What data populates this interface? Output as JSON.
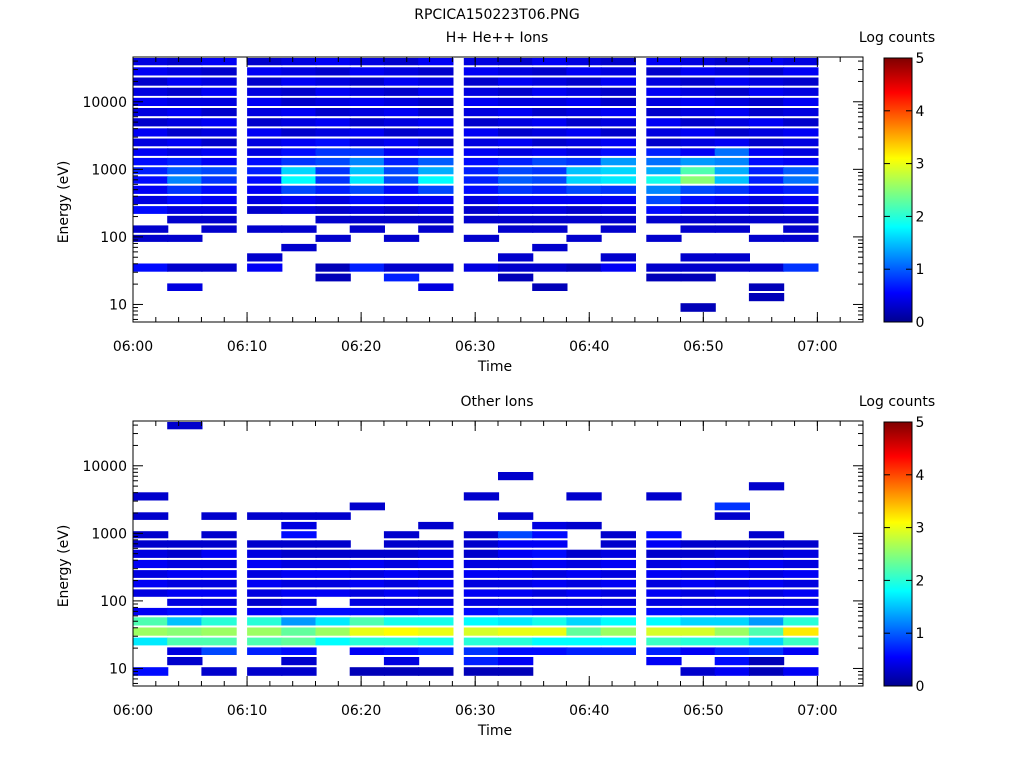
{
  "figure_title": "RPCICA150223T06.PNG",
  "chart_data": [
    {
      "type": "heatmap",
      "title": "H+ He++ Ions",
      "xlabel": "Time",
      "ylabel": "Energy (eV)",
      "yscale": "log",
      "ylim": [
        5.5,
        46000
      ],
      "xlim": [
        "06:00",
        "07:04"
      ],
      "xticks": [
        "06:00",
        "06:10",
        "06:20",
        "06:30",
        "06:40",
        "06:50",
        "07:00"
      ],
      "yticks": [
        {
          "value": 10,
          "label": "10"
        },
        {
          "value": 100,
          "label": "100"
        },
        {
          "value": 1000,
          "label": "1000"
        },
        {
          "value": 10000,
          "label": "10000"
        }
      ],
      "colorbar": {
        "label": "Log counts",
        "range": [
          0,
          5
        ],
        "ticks": [
          "0",
          "1",
          "2",
          "3",
          "4",
          "5"
        ]
      },
      "time_bins": [
        "06:00",
        "06:03",
        "06:06",
        "06:10",
        "06:13",
        "06:16",
        "06:19",
        "06:22",
        "06:25",
        "06:29",
        "06:32",
        "06:35",
        "06:38",
        "06:41",
        "06:45",
        "06:48",
        "06:51",
        "06:54",
        "06:57"
      ],
      "energy_bands_eV": [
        40000,
        28000,
        20000,
        14000,
        10000,
        7000,
        5000,
        3500,
        2500,
        1800,
        1300,
        950,
        700,
        500,
        350,
        250,
        180,
        130,
        95,
        70,
        50,
        35,
        25,
        18,
        13,
        9
      ],
      "log_counts": [
        [
          0.4,
          0.3,
          0.5,
          0.3,
          0.4,
          0.5,
          0.4,
          0.3,
          0.5,
          0.4,
          0.3,
          0.5,
          0.4,
          0.3,
          0.5,
          0.4,
          0.3,
          0.5,
          0.4
        ],
        [
          0.5,
          0.4,
          0.3,
          0.5,
          0.4,
          0.3,
          0.5,
          0.4,
          0.3,
          0.5,
          0.4,
          0.3,
          0.5,
          0.4,
          0.3,
          0.5,
          0.4,
          0.3,
          0.5
        ],
        [
          0.3,
          0.5,
          0.4,
          0.3,
          0.5,
          0.4,
          0.3,
          0.5,
          0.4,
          0.3,
          0.5,
          0.4,
          0.3,
          0.5,
          0.4,
          0.3,
          0.5,
          0.4,
          0.3
        ],
        [
          0.4,
          0.3,
          0.5,
          0.4,
          0.3,
          0.5,
          0.4,
          0.3,
          0.5,
          0.4,
          0.3,
          0.5,
          0.4,
          0.3,
          0.5,
          0.4,
          0.3,
          0.5,
          0.4
        ],
        [
          0.5,
          0.4,
          0.4,
          0.5,
          0.3,
          0.4,
          0.5,
          0.4,
          0.3,
          0.5,
          0.4,
          0.4,
          0.5,
          0.3,
          0.4,
          0.5,
          0.4,
          0.3,
          0.5
        ],
        [
          0.4,
          0.5,
          0.3,
          0.4,
          0.5,
          0.3,
          0.4,
          0.5,
          0.3,
          0.4,
          0.5,
          0.3,
          0.4,
          0.5,
          0.3,
          0.4,
          0.5,
          0.3,
          0.4
        ],
        [
          0.3,
          0.4,
          0.5,
          0.3,
          0.4,
          0.5,
          0.3,
          0.4,
          0.5,
          0.3,
          0.4,
          0.5,
          0.3,
          0.4,
          0.5,
          0.3,
          0.4,
          0.5,
          0.3
        ],
        [
          0.5,
          0.3,
          0.4,
          0.5,
          0.3,
          0.4,
          0.5,
          0.3,
          0.4,
          0.5,
          0.3,
          0.4,
          0.5,
          0.3,
          0.4,
          0.5,
          0.3,
          0.4,
          0.5
        ],
        [
          0.4,
          0.5,
          0.3,
          0.4,
          0.5,
          0.6,
          0.4,
          0.5,
          0.3,
          0.4,
          0.5,
          0.3,
          0.4,
          0.5,
          0.3,
          0.4,
          0.5,
          0.3,
          0.4
        ],
        [
          0.5,
          0.4,
          0.5,
          0.4,
          0.6,
          0.8,
          0.8,
          0.5,
          0.6,
          0.5,
          0.4,
          0.5,
          0.4,
          0.6,
          0.7,
          0.5,
          1.1,
          0.5,
          0.4
        ],
        [
          0.6,
          0.7,
          0.5,
          0.6,
          0.8,
          0.9,
          1.2,
          0.7,
          1.0,
          0.6,
          0.7,
          0.9,
          0.8,
          1.3,
          1.1,
          1.3,
          1.2,
          0.6,
          0.5
        ],
        [
          0.7,
          1.0,
          0.9,
          0.7,
          1.6,
          0.8,
          1.5,
          0.9,
          1.4,
          0.7,
          0.9,
          0.8,
          1.5,
          1.6,
          1.4,
          2.2,
          1.4,
          0.7,
          1.0
        ],
        [
          0.6,
          1.2,
          0.8,
          0.6,
          1.8,
          0.8,
          1.7,
          0.9,
          1.8,
          0.7,
          1.0,
          0.9,
          1.6,
          1.7,
          1.9,
          2.5,
          1.5,
          0.7,
          1.1
        ],
        [
          0.5,
          0.8,
          0.6,
          0.5,
          0.9,
          0.7,
          0.9,
          0.6,
          0.9,
          0.6,
          0.8,
          0.7,
          0.9,
          0.8,
          1.2,
          0.9,
          0.8,
          0.6,
          0.7
        ],
        [
          0.4,
          0.6,
          0.5,
          0.4,
          0.5,
          0.4,
          0.6,
          0.5,
          0.5,
          0.4,
          0.5,
          0.5,
          0.5,
          0.5,
          0.9,
          0.6,
          0.5,
          0.4,
          0.5
        ],
        [
          0.6,
          0.4,
          0.4,
          0.3,
          0.4,
          0.3,
          0.4,
          0.3,
          0.4,
          0.3,
          0.4,
          0.4,
          0.3,
          0.4,
          0.6,
          0.4,
          0.4,
          0.3,
          0.4
        ],
        [
          0.0,
          0.3,
          0.3,
          0.0,
          0.0,
          0.3,
          0.3,
          0.3,
          0.3,
          0.3,
          0.3,
          0.3,
          0.3,
          0.3,
          0.3,
          0.3,
          0.3,
          0.3,
          0.3
        ],
        [
          0.3,
          0.0,
          0.3,
          0.3,
          0.3,
          0.0,
          0.3,
          0.0,
          0.3,
          0.0,
          0.3,
          0.3,
          0.0,
          0.3,
          0.0,
          0.3,
          0.3,
          0.0,
          0.3
        ],
        [
          0.3,
          0.3,
          0.0,
          0.0,
          0.0,
          0.3,
          0.0,
          0.3,
          0.0,
          0.3,
          0.0,
          0.0,
          0.3,
          0.0,
          0.3,
          0.0,
          0.0,
          0.3,
          0.3
        ],
        [
          0.0,
          0.0,
          0.0,
          0.0,
          0.3,
          0.0,
          0.0,
          0.0,
          0.0,
          0.0,
          0.0,
          0.3,
          0.0,
          0.0,
          0.0,
          0.0,
          0.0,
          0.0,
          0.0
        ],
        [
          0.0,
          0.0,
          0.0,
          0.3,
          0.0,
          0.0,
          0.0,
          0.0,
          0.0,
          0.0,
          0.3,
          0.0,
          0.0,
          0.3,
          0.0,
          0.3,
          0.3,
          0.0,
          0.0
        ],
        [
          0.6,
          0.3,
          0.3,
          0.5,
          0.0,
          0.2,
          0.7,
          0.3,
          0.3,
          0.4,
          0.3,
          0.3,
          0.2,
          0.5,
          0.3,
          0.3,
          0.3,
          0.3,
          0.8
        ],
        [
          0.0,
          0.0,
          0.0,
          0.0,
          0.0,
          0.2,
          0.0,
          0.7,
          0.0,
          0.0,
          0.2,
          0.0,
          0.0,
          0.0,
          0.2,
          0.2,
          0.0,
          0.0,
          0.0
        ],
        [
          0.0,
          0.4,
          0.0,
          0.0,
          0.0,
          0.0,
          0.0,
          0.0,
          0.4,
          0.0,
          0.0,
          0.2,
          0.0,
          0.0,
          0.0,
          0.0,
          0.0,
          0.2,
          0.0
        ],
        [
          0.0,
          0.0,
          0.0,
          0.0,
          0.0,
          0.0,
          0.0,
          0.0,
          0.0,
          0.0,
          0.0,
          0.0,
          0.0,
          0.0,
          0.0,
          0.0,
          0.0,
          0.2,
          0.0
        ],
        [
          0.0,
          0.0,
          0.0,
          0.0,
          0.0,
          0.0,
          0.0,
          0.0,
          0.0,
          0.0,
          0.0,
          0.0,
          0.0,
          0.0,
          0.0,
          0.2,
          0.0,
          0.0,
          0.0
        ]
      ]
    },
    {
      "type": "heatmap",
      "title": "Other Ions",
      "xlabel": "Time",
      "ylabel": "Energy (eV)",
      "yscale": "log",
      "ylim": [
        5.5,
        46000
      ],
      "xlim": [
        "06:00",
        "07:04"
      ],
      "xticks": [
        "06:00",
        "06:10",
        "06:20",
        "06:30",
        "06:40",
        "06:50",
        "07:00"
      ],
      "yticks": [
        {
          "value": 10,
          "label": "10"
        },
        {
          "value": 100,
          "label": "100"
        },
        {
          "value": 1000,
          "label": "1000"
        },
        {
          "value": 10000,
          "label": "10000"
        }
      ],
      "colorbar": {
        "label": "Log counts",
        "range": [
          0,
          5
        ],
        "ticks": [
          "0",
          "1",
          "2",
          "3",
          "4",
          "5"
        ]
      },
      "time_bins": [
        "06:00",
        "06:03",
        "06:06",
        "06:10",
        "06:13",
        "06:16",
        "06:19",
        "06:22",
        "06:25",
        "06:29",
        "06:32",
        "06:35",
        "06:38",
        "06:41",
        "06:45",
        "06:48",
        "06:51",
        "06:54",
        "06:57"
      ],
      "energy_bands_eV": [
        40000,
        28000,
        20000,
        14000,
        10000,
        7000,
        5000,
        3500,
        2500,
        1800,
        1300,
        950,
        700,
        500,
        350,
        250,
        180,
        130,
        95,
        70,
        50,
        35,
        25,
        18,
        13,
        9
      ],
      "log_counts": [
        [
          0.0,
          0.3,
          0.0,
          0.0,
          0.0,
          0.0,
          0.0,
          0.0,
          0.0,
          0.0,
          0.0,
          0.0,
          0.0,
          0.0,
          0.0,
          0.0,
          0.0,
          0.0,
          0.0
        ],
        [
          0.0,
          0.0,
          0.0,
          0.0,
          0.0,
          0.0,
          0.0,
          0.0,
          0.0,
          0.0,
          0.0,
          0.0,
          0.0,
          0.0,
          0.0,
          0.0,
          0.0,
          0.0,
          0.0
        ],
        [
          0.0,
          0.0,
          0.0,
          0.0,
          0.0,
          0.0,
          0.0,
          0.0,
          0.0,
          0.0,
          0.0,
          0.0,
          0.0,
          0.0,
          0.0,
          0.0,
          0.0,
          0.0,
          0.0
        ],
        [
          0.0,
          0.0,
          0.0,
          0.0,
          0.0,
          0.0,
          0.0,
          0.0,
          0.0,
          0.0,
          0.0,
          0.0,
          0.0,
          0.0,
          0.0,
          0.0,
          0.0,
          0.0,
          0.0
        ],
        [
          0.0,
          0.0,
          0.0,
          0.0,
          0.0,
          0.0,
          0.0,
          0.0,
          0.0,
          0.0,
          0.0,
          0.0,
          0.0,
          0.0,
          0.0,
          0.0,
          0.0,
          0.0,
          0.0
        ],
        [
          0.0,
          0.0,
          0.0,
          0.0,
          0.0,
          0.0,
          0.0,
          0.0,
          0.0,
          0.0,
          0.3,
          0.0,
          0.0,
          0.0,
          0.0,
          0.0,
          0.0,
          0.0,
          0.0
        ],
        [
          0.0,
          0.0,
          0.0,
          0.0,
          0.0,
          0.0,
          0.0,
          0.0,
          0.0,
          0.0,
          0.0,
          0.0,
          0.0,
          0.0,
          0.0,
          0.0,
          0.0,
          0.3,
          0.0
        ],
        [
          0.3,
          0.0,
          0.0,
          0.0,
          0.0,
          0.0,
          0.0,
          0.0,
          0.0,
          0.3,
          0.0,
          0.0,
          0.3,
          0.0,
          0.3,
          0.0,
          0.0,
          0.0,
          0.0
        ],
        [
          0.0,
          0.0,
          0.0,
          0.0,
          0.0,
          0.0,
          0.3,
          0.0,
          0.0,
          0.0,
          0.0,
          0.0,
          0.0,
          0.0,
          0.0,
          0.0,
          0.8,
          0.0,
          0.0
        ],
        [
          0.3,
          0.0,
          0.3,
          0.3,
          0.3,
          0.3,
          0.0,
          0.0,
          0.0,
          0.0,
          0.3,
          0.0,
          0.0,
          0.0,
          0.0,
          0.0,
          0.3,
          0.0,
          0.0
        ],
        [
          0.0,
          0.0,
          0.0,
          0.0,
          0.4,
          0.0,
          0.0,
          0.0,
          0.3,
          0.0,
          0.0,
          0.4,
          0.3,
          0.0,
          0.0,
          0.0,
          0.0,
          0.0,
          0.0
        ],
        [
          0.3,
          0.0,
          0.3,
          0.0,
          0.6,
          0.0,
          0.0,
          0.3,
          0.0,
          0.3,
          0.9,
          0.6,
          0.0,
          0.3,
          0.6,
          0.0,
          0.0,
          0.3,
          0.0
        ],
        [
          0.3,
          0.3,
          0.3,
          0.3,
          0.3,
          0.3,
          0.0,
          0.3,
          0.3,
          0.3,
          0.5,
          0.5,
          0.0,
          0.3,
          0.5,
          0.3,
          0.3,
          0.3,
          0.3
        ],
        [
          0.4,
          0.3,
          0.5,
          0.4,
          0.3,
          0.3,
          0.3,
          0.3,
          0.4,
          0.3,
          0.5,
          0.6,
          0.3,
          0.4,
          0.3,
          0.3,
          0.4,
          0.3,
          0.4
        ],
        [
          0.5,
          0.4,
          0.4,
          0.5,
          0.4,
          0.4,
          0.5,
          0.4,
          0.5,
          0.4,
          0.4,
          0.5,
          0.4,
          0.5,
          0.4,
          0.5,
          0.4,
          0.5,
          0.4
        ],
        [
          0.4,
          0.5,
          0.5,
          0.4,
          0.5,
          0.5,
          0.4,
          0.5,
          0.4,
          0.5,
          0.5,
          0.4,
          0.5,
          0.4,
          0.5,
          0.4,
          0.5,
          0.4,
          0.5
        ],
        [
          0.5,
          0.4,
          0.4,
          0.5,
          0.4,
          0.4,
          0.5,
          0.4,
          0.5,
          0.4,
          0.4,
          0.5,
          0.4,
          0.5,
          0.4,
          0.5,
          0.4,
          0.5,
          0.4
        ],
        [
          0.4,
          0.5,
          0.5,
          0.4,
          0.5,
          0.5,
          0.4,
          0.5,
          0.4,
          0.5,
          0.5,
          0.4,
          0.5,
          0.4,
          0.5,
          0.4,
          0.5,
          0.4,
          0.5
        ],
        [
          0.0,
          0.4,
          0.4,
          0.3,
          0.4,
          0.0,
          0.4,
          0.4,
          0.4,
          0.4,
          0.4,
          0.4,
          0.4,
          0.4,
          0.4,
          0.4,
          0.4,
          0.4,
          0.4
        ],
        [
          0.5,
          0.6,
          0.5,
          0.5,
          0.6,
          0.6,
          0.6,
          0.5,
          0.6,
          0.6,
          0.7,
          0.6,
          0.6,
          0.6,
          0.6,
          0.6,
          0.6,
          0.6,
          0.6
        ],
        [
          2.2,
          1.5,
          2.0,
          2.0,
          1.3,
          1.7,
          2.2,
          1.9,
          1.9,
          1.8,
          1.7,
          1.9,
          1.6,
          1.8,
          1.8,
          1.6,
          1.6,
          1.3,
          2.0
        ],
        [
          2.6,
          2.5,
          2.6,
          2.6,
          2.3,
          2.6,
          3.0,
          3.1,
          3.0,
          2.9,
          3.0,
          3.0,
          2.3,
          2.6,
          2.9,
          2.9,
          2.6,
          2.2,
          3.2
        ],
        [
          1.7,
          2.2,
          2.2,
          2.2,
          2.3,
          1.8,
          2.0,
          2.0,
          1.9,
          2.0,
          2.0,
          1.8,
          1.8,
          1.8,
          2.1,
          2.0,
          2.0,
          1.6,
          2.1
        ],
        [
          0.0,
          0.4,
          0.9,
          0.7,
          0.6,
          0.0,
          0.5,
          0.6,
          0.7,
          0.8,
          0.6,
          0.6,
          0.7,
          0.7,
          0.7,
          0.5,
          0.7,
          0.8,
          0.5
        ],
        [
          0.0,
          0.3,
          0.0,
          0.0,
          0.3,
          0.0,
          0.0,
          0.4,
          0.0,
          0.7,
          0.5,
          0.0,
          0.0,
          0.0,
          0.5,
          0.0,
          0.6,
          0.2,
          0.0
        ],
        [
          0.6,
          0.0,
          0.3,
          0.3,
          0.3,
          0.0,
          0.2,
          0.2,
          0.2,
          0.2,
          0.2,
          0.0,
          0.0,
          0.0,
          0.0,
          0.3,
          0.5,
          0.2,
          0.5
        ]
      ]
    }
  ]
}
